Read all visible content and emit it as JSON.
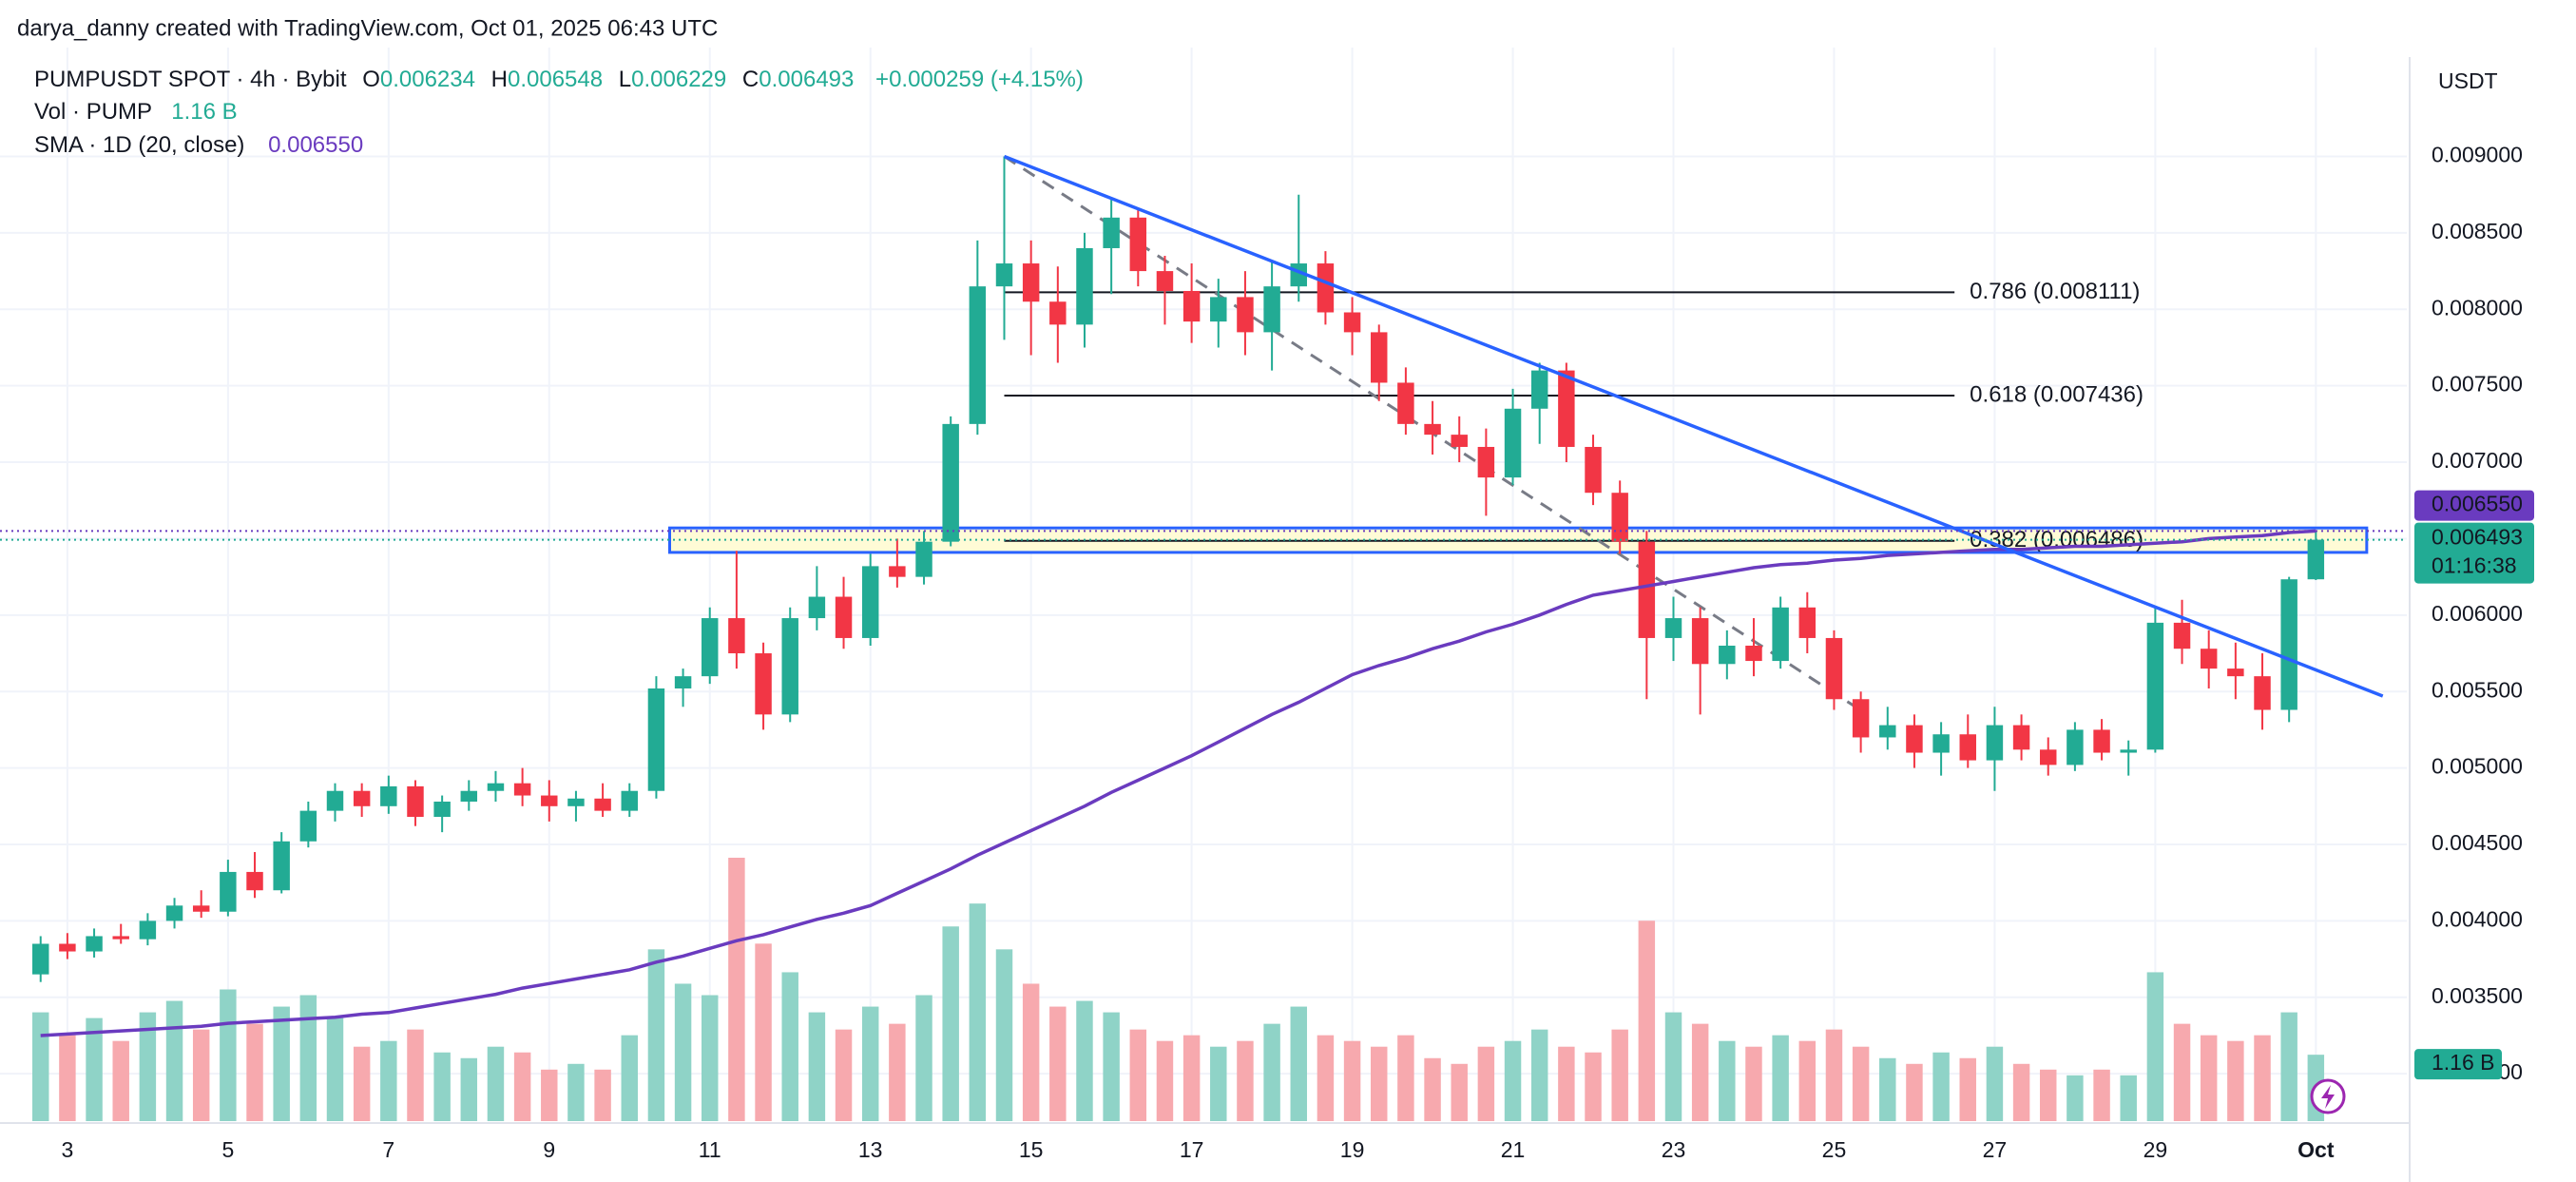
{
  "chart_data": {
    "type": "candlestick",
    "header": "darya_danny created with TradingView.com, Oct 01, 2025 06:43 UTC",
    "title": "PUMPUSDT SPOT · 4h · Bybit",
    "ohlc_keys": [
      "O",
      "H",
      "L",
      "C"
    ],
    "change": "+0.000259 (+4.15%)",
    "volume_title": "Vol · PUMP",
    "volume_value_label": "1.16 B",
    "sma_title": "SMA · 1D (20, close)",
    "sma_value": {
      "value": 0.00655,
      "label": "0.006550"
    },
    "currency": "USDT",
    "countdown": "01:16:38",
    "colors": {
      "up": "#22ab94",
      "down": "#f23645",
      "up_volume": "#8fd3c7",
      "down_volume": "#f7a9ae",
      "sma": "#6a3bbf",
      "trendline": "#2962ff",
      "zone_fill": "#fffbd6",
      "fib": "#131722",
      "dashed": "#787b86"
    },
    "grid": true,
    "categories": [
      null,
      "3",
      null,
      null,
      null,
      null,
      null,
      "5",
      null,
      null,
      null,
      null,
      null,
      "7",
      null,
      null,
      null,
      null,
      null,
      "9",
      null,
      null,
      null,
      null,
      null,
      "11",
      null,
      null,
      null,
      null,
      null,
      "13",
      null,
      null,
      null,
      null,
      null,
      "15",
      null,
      null,
      null,
      null,
      null,
      "17",
      null,
      null,
      null,
      null,
      null,
      "19",
      null,
      null,
      null,
      null,
      null,
      "21",
      null,
      null,
      null,
      null,
      null,
      "23",
      null,
      null,
      null,
      null,
      null,
      "25",
      null,
      null,
      null,
      null,
      null,
      "27",
      null,
      null,
      null,
      null,
      null,
      "29",
      null,
      null,
      null,
      null,
      null,
      "Oct"
    ],
    "open": [
      0.00365,
      0.00385,
      0.0038,
      0.0039,
      0.00388,
      0.004,
      0.0041,
      0.00406,
      0.00432,
      0.0042,
      0.00452,
      0.00472,
      0.00485,
      0.00475,
      0.00488,
      0.00468,
      0.00478,
      0.00485,
      0.0049,
      0.00482,
      0.00475,
      0.0048,
      0.00472,
      0.00485,
      0.00552,
      0.0056,
      0.00598,
      0.00575,
      0.00535,
      0.00598,
      0.00612,
      0.00585,
      0.00632,
      0.00625,
      0.00648,
      0.00725,
      0.00815,
      0.0083,
      0.00805,
      0.0079,
      0.0084,
      0.0086,
      0.00825,
      0.00812,
      0.00792,
      0.00808,
      0.00785,
      0.00815,
      0.0083,
      0.00798,
      0.00785,
      0.00752,
      0.00725,
      0.00718,
      0.0071,
      0.0069,
      0.00735,
      0.0076,
      0.0071,
      0.0068,
      0.00648,
      0.00585,
      0.00598,
      0.00568,
      0.0058,
      0.0057,
      0.00605,
      0.00585,
      0.00545,
      0.0052,
      0.00528,
      0.0051,
      0.00522,
      0.00505,
      0.00528,
      0.00512,
      0.00502,
      0.00525,
      0.0051,
      0.00512,
      0.00595,
      0.00578,
      0.00565,
      0.0056,
      0.00538,
      0.006234
    ],
    "high": [
      0.0039,
      0.00392,
      0.00395,
      0.00398,
      0.00405,
      0.00415,
      0.0042,
      0.0044,
      0.00445,
      0.00458,
      0.00478,
      0.0049,
      0.0049,
      0.00495,
      0.00492,
      0.00482,
      0.00492,
      0.00498,
      0.005,
      0.00492,
      0.00485,
      0.0049,
      0.0049,
      0.0056,
      0.00565,
      0.00605,
      0.00642,
      0.00582,
      0.00605,
      0.00632,
      0.00625,
      0.0064,
      0.0065,
      0.00655,
      0.0073,
      0.00845,
      0.009,
      0.00845,
      0.00828,
      0.0085,
      0.00872,
      0.00865,
      0.00835,
      0.0083,
      0.0082,
      0.00825,
      0.00832,
      0.00875,
      0.00838,
      0.00808,
      0.0079,
      0.00762,
      0.0074,
      0.0073,
      0.00722,
      0.00748,
      0.00765,
      0.00765,
      0.00718,
      0.00688,
      0.00655,
      0.00612,
      0.00605,
      0.0059,
      0.00598,
      0.00612,
      0.00615,
      0.0059,
      0.0055,
      0.0054,
      0.00535,
      0.0053,
      0.00535,
      0.0054,
      0.00535,
      0.0052,
      0.0053,
      0.00532,
      0.00518,
      0.00605,
      0.0061,
      0.0059,
      0.00582,
      0.00575,
      0.00625,
      0.006548
    ],
    "low": [
      0.0036,
      0.00375,
      0.00376,
      0.00385,
      0.00384,
      0.00395,
      0.00402,
      0.00403,
      0.00415,
      0.00418,
      0.00448,
      0.00465,
      0.00468,
      0.0047,
      0.00462,
      0.00458,
      0.00472,
      0.00478,
      0.00475,
      0.00465,
      0.00465,
      0.00468,
      0.00468,
      0.0048,
      0.0054,
      0.00555,
      0.00565,
      0.00525,
      0.0053,
      0.0059,
      0.00578,
      0.0058,
      0.00618,
      0.0062,
      0.00645,
      0.00718,
      0.0078,
      0.0077,
      0.00765,
      0.00775,
      0.0081,
      0.00815,
      0.0079,
      0.00778,
      0.00775,
      0.0077,
      0.0076,
      0.00805,
      0.0079,
      0.0077,
      0.0074,
      0.00718,
      0.00705,
      0.007,
      0.00665,
      0.00685,
      0.00712,
      0.007,
      0.00672,
      0.0064,
      0.00545,
      0.0057,
      0.00535,
      0.00558,
      0.0056,
      0.00565,
      0.00575,
      0.00538,
      0.0051,
      0.00512,
      0.005,
      0.00495,
      0.005,
      0.00485,
      0.00505,
      0.00495,
      0.00498,
      0.00505,
      0.00495,
      0.0051,
      0.00568,
      0.00552,
      0.00545,
      0.00525,
      0.0053,
      0.006229
    ],
    "close": [
      0.00385,
      0.0038,
      0.0039,
      0.00388,
      0.004,
      0.0041,
      0.00406,
      0.00432,
      0.0042,
      0.00452,
      0.00472,
      0.00485,
      0.00475,
      0.00488,
      0.00468,
      0.00478,
      0.00485,
      0.0049,
      0.00482,
      0.00475,
      0.0048,
      0.00472,
      0.00485,
      0.00552,
      0.0056,
      0.00598,
      0.00575,
      0.00535,
      0.00598,
      0.00612,
      0.00585,
      0.00632,
      0.00625,
      0.00648,
      0.00725,
      0.00815,
      0.0083,
      0.00805,
      0.0079,
      0.0084,
      0.0086,
      0.00825,
      0.00812,
      0.00792,
      0.00808,
      0.00785,
      0.00815,
      0.0083,
      0.00798,
      0.00785,
      0.00752,
      0.00725,
      0.00718,
      0.0071,
      0.0069,
      0.00735,
      0.0076,
      0.0071,
      0.0068,
      0.00648,
      0.00585,
      0.00598,
      0.00568,
      0.0058,
      0.0057,
      0.00605,
      0.00585,
      0.00545,
      0.0052,
      0.00528,
      0.0051,
      0.00522,
      0.00505,
      0.00528,
      0.00512,
      0.00502,
      0.00525,
      0.0051,
      0.00512,
      0.00595,
      0.00578,
      0.00565,
      0.0056,
      0.00538,
      0.006234,
      0.006493
    ],
    "volume": [
      1.9,
      1.5,
      1.8,
      1.4,
      1.9,
      2.1,
      1.6,
      2.3,
      1.7,
      2.0,
      2.2,
      1.8,
      1.3,
      1.4,
      1.6,
      1.2,
      1.1,
      1.3,
      1.2,
      0.9,
      1.0,
      0.9,
      1.5,
      3.0,
      2.4,
      2.2,
      4.6,
      3.1,
      2.6,
      1.9,
      1.6,
      2.0,
      1.7,
      2.2,
      3.4,
      3.8,
      3.0,
      2.4,
      2.0,
      2.1,
      1.9,
      1.6,
      1.4,
      1.5,
      1.3,
      1.4,
      1.7,
      2.0,
      1.5,
      1.4,
      1.3,
      1.5,
      1.1,
      1.0,
      1.3,
      1.4,
      1.6,
      1.3,
      1.2,
      1.6,
      3.5,
      1.9,
      1.7,
      1.4,
      1.3,
      1.5,
      1.4,
      1.6,
      1.3,
      1.1,
      1.0,
      1.2,
      1.1,
      1.3,
      1.0,
      0.9,
      0.8,
      0.9,
      0.8,
      2.6,
      1.7,
      1.5,
      1.4,
      1.5,
      1.9,
      1.16
    ],
    "sma": [
      0.00325,
      0.00326,
      0.00327,
      0.00328,
      0.00329,
      0.0033,
      0.00331,
      0.00333,
      0.00334,
      0.00335,
      0.00336,
      0.00337,
      0.00339,
      0.0034,
      0.00343,
      0.00346,
      0.00349,
      0.00352,
      0.00356,
      0.00359,
      0.00362,
      0.00365,
      0.00368,
      0.00373,
      0.00377,
      0.00382,
      0.00387,
      0.00391,
      0.00396,
      0.00401,
      0.00405,
      0.0041,
      0.00418,
      0.00426,
      0.00434,
      0.00443,
      0.00451,
      0.00459,
      0.00467,
      0.00475,
      0.00484,
      0.00492,
      0.005,
      0.00508,
      0.00517,
      0.00526,
      0.00535,
      0.00543,
      0.00552,
      0.00561,
      0.00567,
      0.00572,
      0.00578,
      0.00583,
      0.00589,
      0.00594,
      0.006,
      0.00607,
      0.00613,
      0.00616,
      0.00619,
      0.00622,
      0.00625,
      0.00628,
      0.00631,
      0.00633,
      0.00634,
      0.00636,
      0.00637,
      0.00639,
      0.0064,
      0.00641,
      0.00642,
      0.00643,
      0.00643,
      0.00644,
      0.00645,
      0.00645,
      0.00646,
      0.00647,
      0.00648,
      0.0065,
      0.00651,
      0.00652,
      0.00654,
      0.00655
    ],
    "ylim": [
      0.00269,
      0.00965
    ],
    "yticks": [
      {
        "value": 0.003,
        "label": "0.003000"
      },
      {
        "value": 0.0035,
        "label": "0.003500"
      },
      {
        "value": 0.004,
        "label": "0.004000"
      },
      {
        "value": 0.0045,
        "label": "0.004500"
      },
      {
        "value": 0.005,
        "label": "0.005000"
      },
      {
        "value": 0.0055,
        "label": "0.005500"
      },
      {
        "value": 0.006,
        "label": "0.006000"
      },
      {
        "value": 0.0065,
        "label": "0.006500"
      },
      {
        "value": 0.007,
        "label": "0.007000"
      },
      {
        "value": 0.0075,
        "label": "0.007500"
      },
      {
        "value": 0.008,
        "label": "0.008000"
      },
      {
        "value": 0.0085,
        "label": "0.008500"
      },
      {
        "value": 0.009,
        "label": "0.009000"
      }
    ],
    "trendline": {
      "x": [
        36,
        87.5
      ],
      "y": [
        0.009,
        0.00547
      ]
    },
    "dashed_line": {
      "x": [
        36,
        67.8
      ],
      "y": [
        0.009,
        0.0054
      ]
    },
    "fib": {
      "x": [
        36,
        71.5
      ],
      "levels": [
        {
          "value": 0.008111,
          "label": "0.786 (0.008111)"
        },
        {
          "value": 0.007436,
          "label": "0.618 (0.007436)"
        },
        {
          "value": 0.006486,
          "label": "0.382 (0.006486)"
        }
      ]
    },
    "zone": {
      "x": [
        23.5,
        86.9
      ],
      "y": [
        0.00641,
        0.00657
      ]
    }
  }
}
